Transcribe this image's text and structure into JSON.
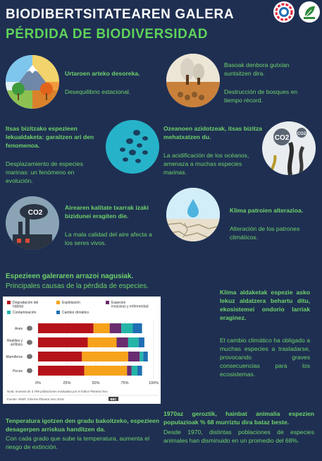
{
  "header": {
    "title_eu": "BIODIBERTSITATEAREN GALERA",
    "title_es": "PÉRDIDA DE BIODIVERSIDAD"
  },
  "items": [
    {
      "eu": "Urtaroen arteko desoreka.",
      "es": "Desequilibrio estacional."
    },
    {
      "eu": "Basoak denbora gutxian suntsitzen dira.",
      "es": "Destrucción de bosques en tiempo récord."
    },
    {
      "eu": "Itsas bizitzako espezieen lekualdaketa: garaitzen ari den fenomenoa.",
      "es": "Desplazamiento de especies marinas: un fenómeno en evolución."
    },
    {
      "eu": "Ozeanoen azidotzeak, itsas bizitza mehatxatzen du.",
      "es": "La acidificación de los océanos, amenaza a muchas especies marinas."
    },
    {
      "eu": "Airearen kalitate txarrak izaki bizidunei eragiten die.",
      "es": "La mala calidad del aire afecta a los seres vivos."
    },
    {
      "eu": "Klima patroien alterazioa.",
      "es": "Alteración de los patrones climáticos."
    }
  ],
  "causes": {
    "heading_eu": "Espezieen galeraren arrazoi nagusiak.",
    "heading_es": "Principales causas de la pérdida de especies."
  },
  "chart_data": {
    "type": "bar",
    "orientation": "horizontal",
    "stacked": true,
    "categories": [
      "Aves",
      "Reptiles y anfibios",
      "Mamíferos",
      "Peces"
    ],
    "series": [
      {
        "name": "Degradación del hábitat",
        "color": "#b5121b",
        "values": [
          48,
          43,
          38,
          40
        ]
      },
      {
        "name": "Explotación",
        "color": "#f7a21b",
        "values": [
          14,
          25,
          40,
          37
        ]
      },
      {
        "name": "Especies invasivas y enfermedad",
        "color": "#6a2c70",
        "values": [
          10,
          10,
          10,
          4
        ]
      },
      {
        "name": "Contaminación",
        "color": "#25b5a8",
        "values": [
          10,
          9,
          3,
          5
        ]
      },
      {
        "name": "Cambio climático",
        "color": "#1f6fb4",
        "values": [
          8,
          5,
          4,
          4
        ]
      }
    ],
    "xlim": [
      0,
      100
    ],
    "xticks": [
      "0%",
      "25%",
      "50%",
      "75%",
      "100%"
    ],
    "note": "Nota: muestra de 3.789 poblaciones evaluadas por el Índice Planeta Vivo",
    "source": "Fuente: WWF, Informe Planeta Vivo 2018",
    "badge": "BBC"
  },
  "right_block": {
    "eu": "Klima aldaketak espezie asko lekuz aldatzera behartu ditu, ekosistemei ondorio larriak eraginez.",
    "es": "El cambio climático ha obligado a muchas especies a trasladarse, provocando graves consecuencias para los ecosistemas."
  },
  "bottom_left": {
    "eu": "Tenperatura igotzen den gradu bakoitzeko, espezieen desagerpen arriskua handitzen da.",
    "es": "Con cada grado que sube la temperatura, aumenta el riesgo de extinción."
  },
  "bottom_right": {
    "eu": "1970az geroztik, hainbat animalia espezien populazioak % 68 murriztu dira bataz beste.",
    "es": "Desde 1970, distintas poblaciones de especies animales han disminuido en un promedio del 68%."
  },
  "co2_labels": {
    "big": "CO2",
    "small": "CO2"
  }
}
